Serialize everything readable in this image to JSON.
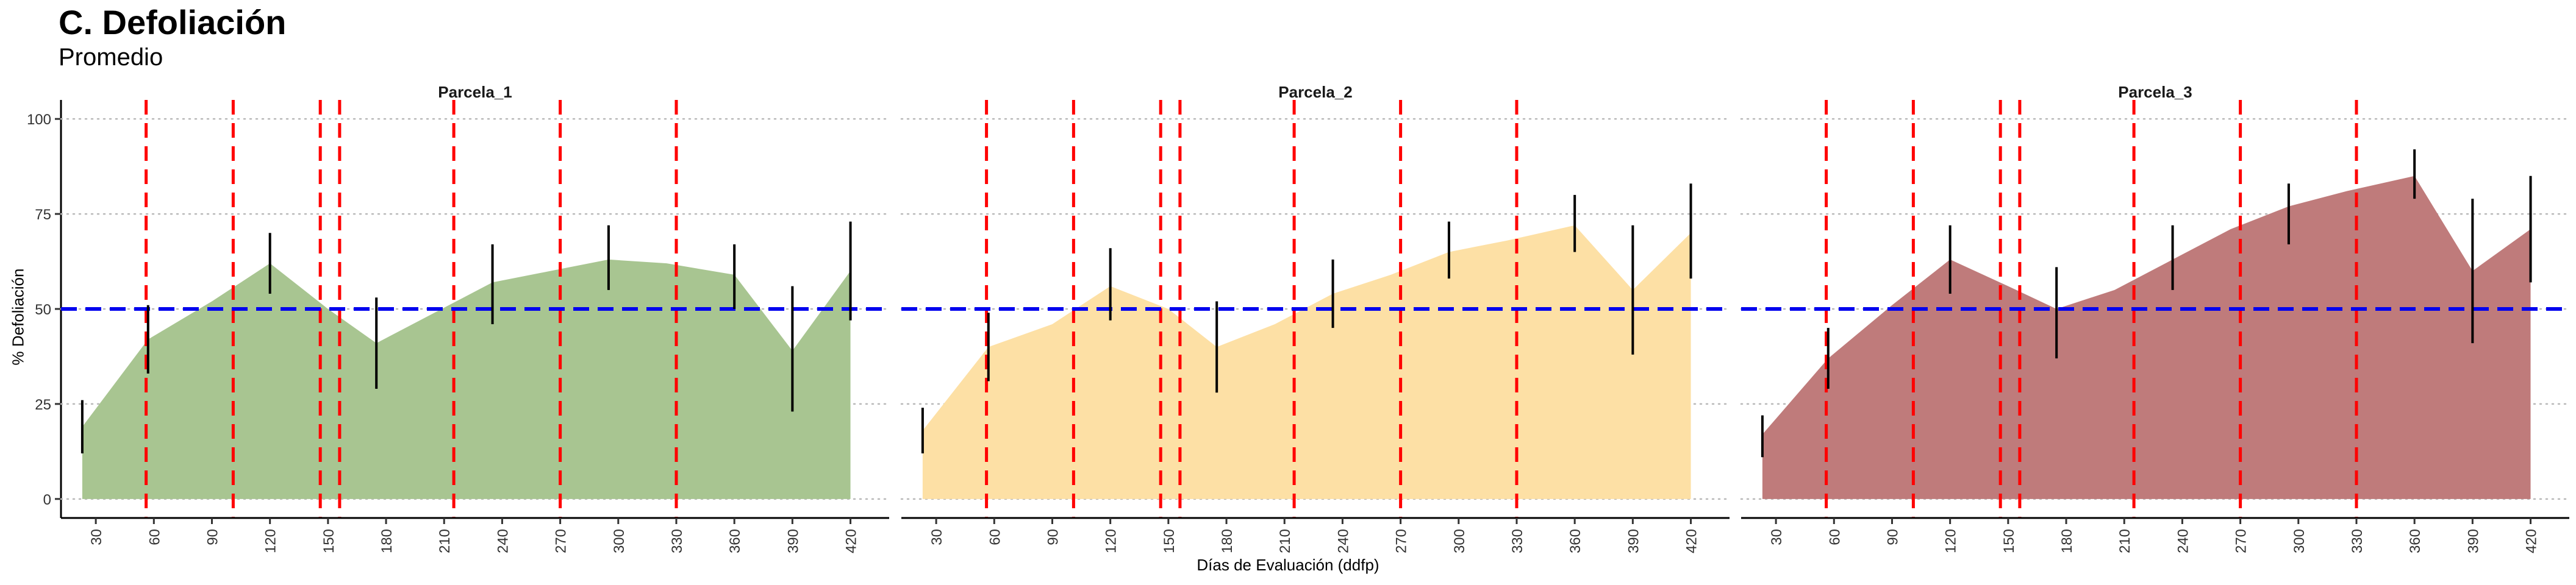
{
  "header": {
    "title": "C. Defoliación",
    "subtitle": "Promedio"
  },
  "chart_data": {
    "type": "area",
    "title": "C. Defoliación",
    "subtitle": "Promedio",
    "xlabel": "Días de Evaluación (ddfp)",
    "ylabel": "% Defoliación",
    "xlim": [
      12,
      440
    ],
    "ylim": [
      -5,
      105
    ],
    "x_ticks": [
      30,
      60,
      90,
      120,
      150,
      180,
      210,
      240,
      270,
      300,
      330,
      360,
      390,
      420
    ],
    "y_ticks": [
      0,
      25,
      50,
      75,
      100
    ],
    "grid": "horizontal dotted",
    "hline": {
      "y": 50,
      "color": "#0000ee",
      "style": "dashed"
    },
    "vlines": {
      "x": [
        56,
        101,
        146,
        156,
        215,
        270,
        330
      ],
      "color": "#ff0000",
      "style": "dashed"
    },
    "x": [
      23,
      57,
      90,
      120,
      150,
      175,
      205,
      235,
      265,
      295,
      325,
      360,
      390,
      420
    ],
    "panels": [
      {
        "name": "Parcela_1",
        "fill": "#a8c591",
        "mean": [
          19,
          42,
          52,
          62,
          50,
          41,
          49,
          57,
          60,
          63,
          62,
          59,
          39,
          60
        ],
        "err_low": [
          12,
          33,
          null,
          54,
          null,
          29,
          null,
          46,
          null,
          55,
          null,
          50,
          23,
          47
        ],
        "err_high": [
          26,
          51,
          null,
          70,
          null,
          53,
          null,
          67,
          null,
          72,
          null,
          67,
          56,
          73
        ]
      },
      {
        "name": "Parcela_2",
        "fill": "#fde0a5",
        "mean": [
          18,
          40,
          46,
          56,
          50,
          40,
          46,
          54,
          59,
          65,
          68,
          72,
          55,
          70
        ],
        "err_low": [
          12,
          31,
          null,
          47,
          null,
          28,
          null,
          45,
          null,
          58,
          null,
          65,
          38,
          58
        ],
        "err_high": [
          24,
          49,
          null,
          66,
          null,
          52,
          null,
          63,
          null,
          73,
          null,
          80,
          72,
          83
        ]
      },
      {
        "name": "Parcela_3",
        "fill": "#bf7b7b",
        "mean": [
          17,
          37,
          51,
          63,
          56,
          50,
          55,
          63,
          71,
          77,
          81,
          85,
          60,
          71
        ],
        "err_low": [
          11,
          29,
          null,
          54,
          null,
          37,
          null,
          55,
          null,
          67,
          null,
          79,
          41,
          57
        ],
        "err_high": [
          22,
          45,
          null,
          72,
          null,
          61,
          null,
          72,
          null,
          83,
          null,
          92,
          79,
          85
        ]
      }
    ]
  }
}
